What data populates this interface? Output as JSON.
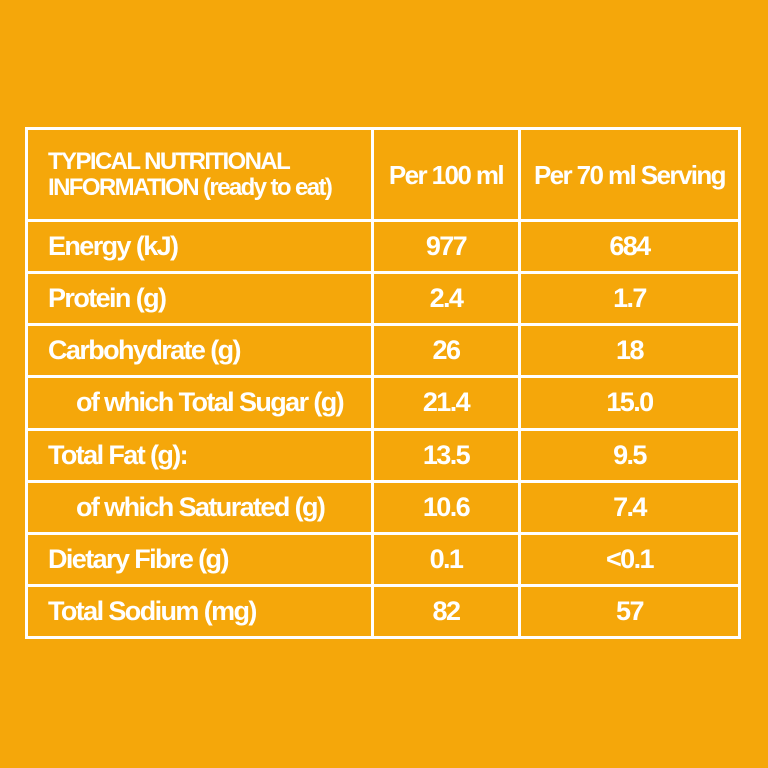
{
  "table": {
    "header": [
      [
        "TYPICAL NUTRITIONAL",
        "INFORMATION (ready to eat)"
      ],
      "Per 100 ml",
      "Per 70 ml Serving"
    ],
    "rows": [
      [
        "Energy (kJ)",
        "977",
        "684"
      ],
      [
        "Protein (g)",
        "2.4",
        "1.7"
      ],
      [
        "Carbohydrate (g)",
        "26",
        "18"
      ],
      [
        "of which Total Sugar (g)",
        "21.4",
        "15.0"
      ],
      [
        "Total Fat (g):",
        "13.5",
        "9.5"
      ],
      [
        "of which Saturated (g)",
        "10.6",
        "7.4"
      ],
      [
        "Dietary Fibre (g)",
        "0.1",
        "<0.1"
      ],
      [
        "Total Sodium (mg)",
        "82",
        "57"
      ]
    ]
  }
}
